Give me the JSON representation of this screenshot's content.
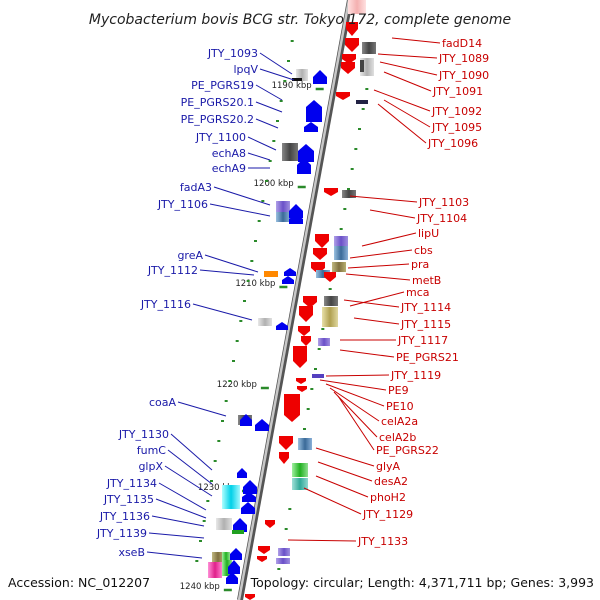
{
  "title": "Mycobacterium bovis BCG str. Tokyo 172, complete genome",
  "footer": {
    "accession": "Accession: NC_012207",
    "summary": "Topology: circular; Length: 4,371,711 bp; Genes: 3,993"
  },
  "ticks": [
    "1190 kbp",
    "1200 kbp",
    "1210 kbp",
    "1220 kbp",
    "1230 kbp",
    "1240 kbp"
  ],
  "left_labels": [
    "JTY_1093",
    "lpqV",
    "PE_PGRS19",
    "PE_PGRS20.1",
    "PE_PGRS20.2",
    "JTY_1100",
    "echA8",
    "echA9",
    "fadA3",
    "JTY_1106",
    "greA",
    "JTY_1112",
    "JTY_1116",
    "coaA",
    "JTY_1130",
    "fumC",
    "glpX",
    "JTY_1134",
    "JTY_1135",
    "JTY_1136",
    "JTY_1139",
    "xseB"
  ],
  "right_labels": [
    "fadD14",
    "JTY_1089",
    "JTY_1090",
    "JTY_1091",
    "JTY_1092",
    "JTY_1095",
    "JTY_1096",
    "JTY_1103",
    "JTY_1104",
    "lipU",
    "cbs",
    "pra",
    "metB",
    "mca",
    "JTY_1114",
    "JTY_1115",
    "JTY_1117",
    "PE_PGRS21",
    "JTY_1119",
    "PE9",
    "PE10",
    "celA2a",
    "celA2b",
    "PE_PGRS22",
    "glyA",
    "desA2",
    "phoH2",
    "JTY_1129",
    "JTY_1133"
  ],
  "colors": {
    "forward_gene": "#0000ee",
    "reverse_gene": "#ee0000",
    "label_left": "#1a1aa8",
    "label_right": "#c80000",
    "backbone": "#999999",
    "tick": "#2a8a2a",
    "rna": "#ff8800"
  }
}
